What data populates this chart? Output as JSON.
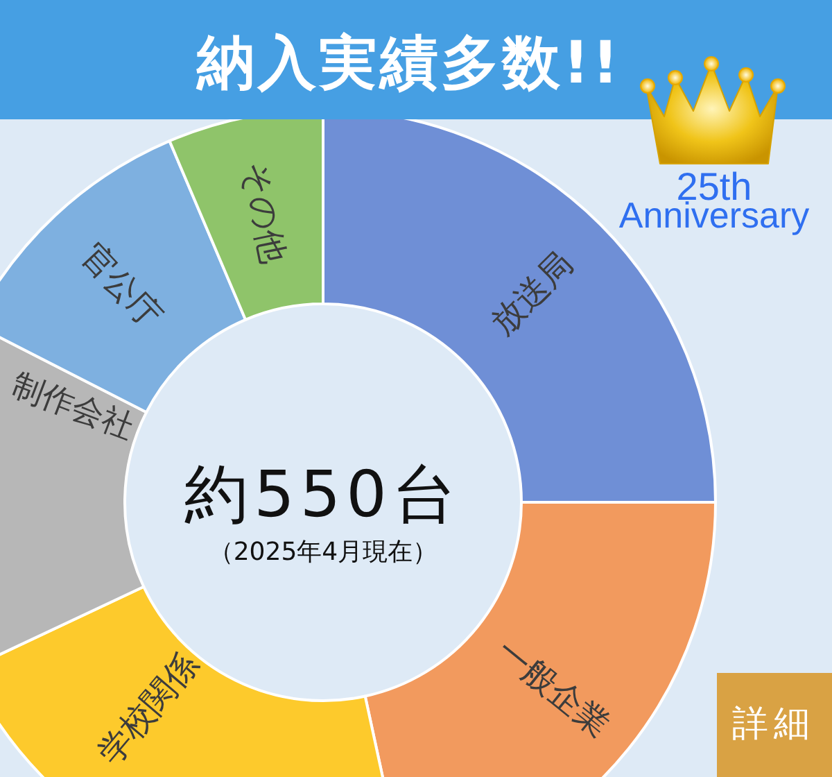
{
  "chart_data": {
    "type": "donut",
    "title": "納入実績多数!!",
    "categories": [
      "放送局",
      "一般企業",
      "学校関係",
      "制作会社",
      "官公庁",
      "その他"
    ],
    "values": [
      25,
      21.6,
      21.4,
      14.5,
      11.1,
      6.4
    ],
    "colors": [
      "#6f8fd6",
      "#f29a5e",
      "#fdca2c",
      "#b7b7b7",
      "#7eb0e0",
      "#8fc46a"
    ],
    "annotations": [
      "約550台",
      "（2025年4月現在）",
      "25th",
      "Anniversary",
      "詳細"
    ]
  }
}
